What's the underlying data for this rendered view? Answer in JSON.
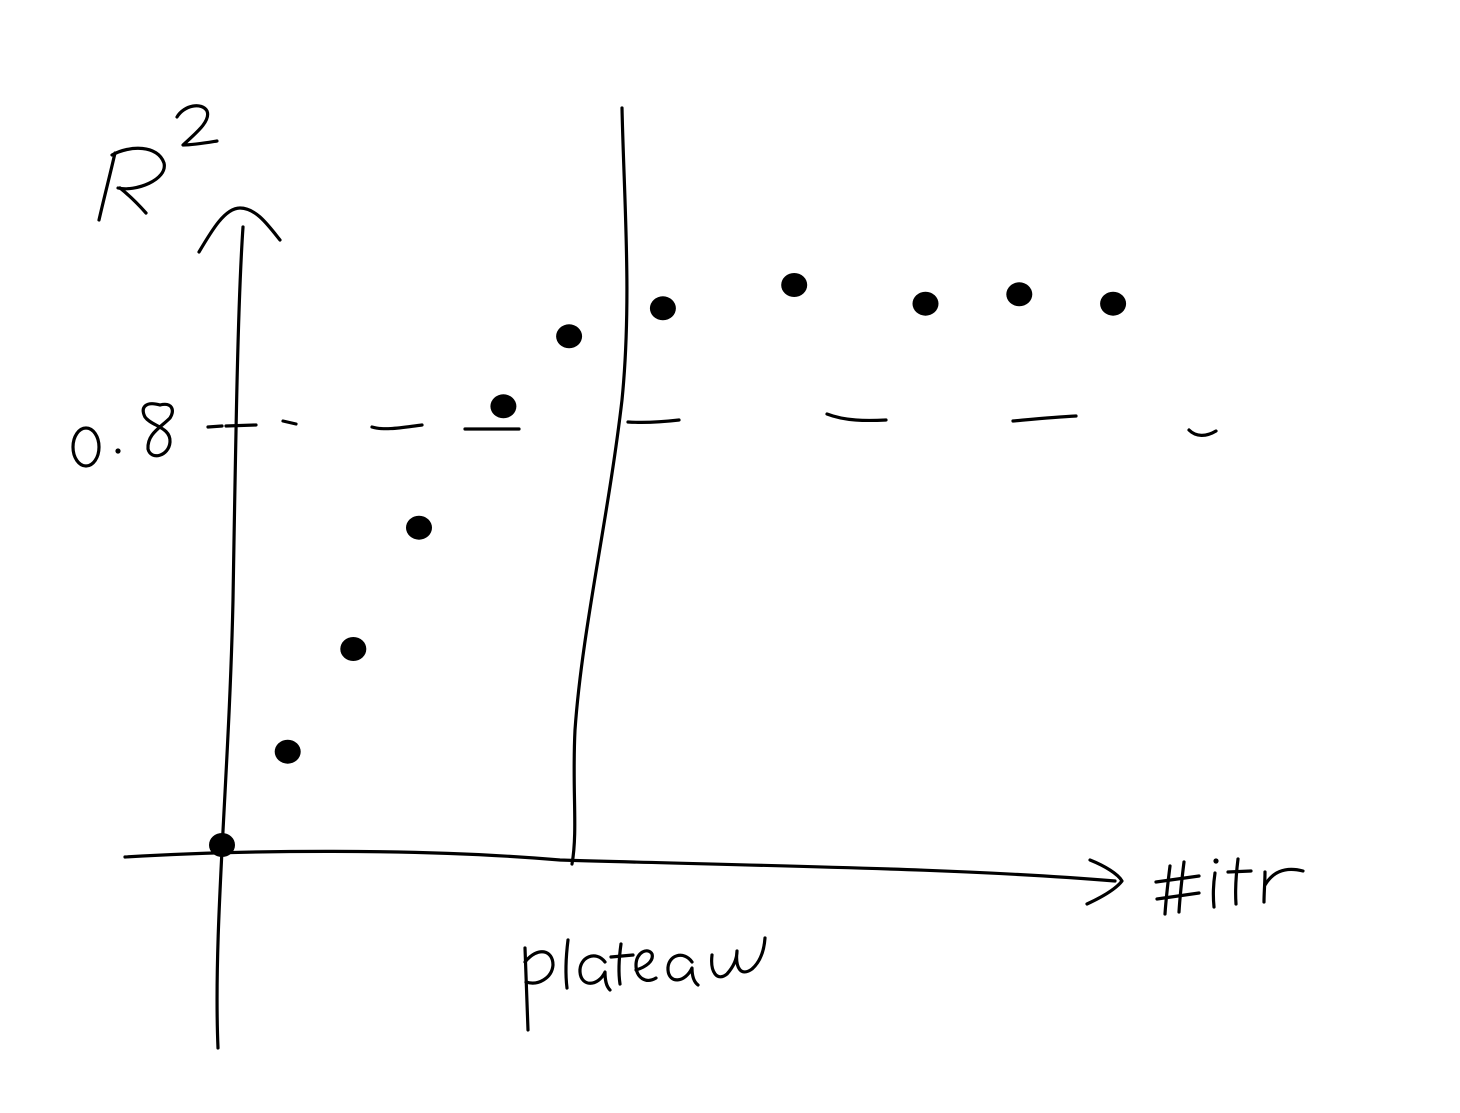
{
  "chart_data": {
    "type": "scatter",
    "title": "",
    "xlabel": "#itr",
    "ylabel": "R²",
    "yticks": [
      "0.8"
    ],
    "threshold": {
      "y": 0.8,
      "style": "dashed"
    },
    "annotations": [
      {
        "text": "plateau",
        "kind": "vertical-line"
      }
    ],
    "grid": false,
    "series": [
      {
        "points": [
          {
            "x": 0,
            "y": 0.0
          },
          {
            "x": 0.07,
            "y": 0.2
          },
          {
            "x": 0.14,
            "y": 0.42
          },
          {
            "x": 0.21,
            "y": 0.68
          },
          {
            "x": 0.3,
            "y": 0.94
          },
          {
            "x": 0.37,
            "y": 1.09
          },
          {
            "x": 0.47,
            "y": 1.15
          },
          {
            "x": 0.61,
            "y": 1.2
          },
          {
            "x": 0.75,
            "y": 1.16
          },
          {
            "x": 0.85,
            "y": 1.18
          },
          {
            "x": 0.95,
            "y": 1.16
          }
        ]
      }
    ]
  },
  "colors": {
    "ink": "#000000",
    "background": "#ffffff"
  }
}
